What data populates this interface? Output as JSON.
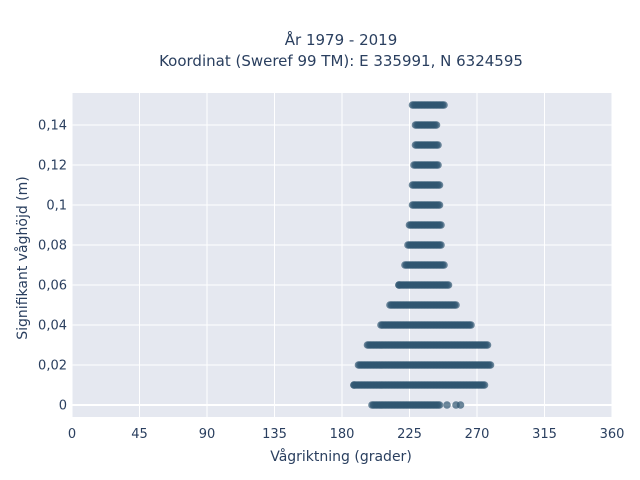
{
  "chart_data": {
    "type": "scatter",
    "title": "År 1979 - 2019",
    "subtitle": "Koordinat (Sweref 99 TM): E 335991, N 6324595",
    "xlabel": "Vågriktning (grader)",
    "ylabel": "Signifikant våghöjd (m)",
    "xlim": [
      0,
      360
    ],
    "ylim": [
      -0.006,
      0.156
    ],
    "x_ticks": [
      0,
      45,
      90,
      135,
      180,
      225,
      270,
      315,
      360
    ],
    "x_tick_labels": [
      "0",
      "45",
      "90",
      "135",
      "180",
      "225",
      "270",
      "315",
      "360"
    ],
    "y_ticks": [
      0,
      0.02,
      0.04,
      0.06,
      0.08,
      0.1,
      0.12,
      0.14
    ],
    "y_tick_labels": [
      "0",
      "0,02",
      "0,04",
      "0,06",
      "0,08",
      "0,1",
      "0,12",
      "0,14"
    ],
    "grid": true,
    "background_color": "#e5e8f0",
    "marker_color": "#2f5570",
    "bands": [
      {
        "y": 0.0,
        "x_min": 200,
        "x_max": 245
      },
      {
        "y": 0.01,
        "x_min": 188,
        "x_max": 275
      },
      {
        "y": 0.02,
        "x_min": 191,
        "x_max": 279
      },
      {
        "y": 0.03,
        "x_min": 197,
        "x_max": 277
      },
      {
        "y": 0.04,
        "x_min": 206,
        "x_max": 266
      },
      {
        "y": 0.05,
        "x_min": 213,
        "x_max": 256
      },
      {
        "y": 0.06,
        "x_min": 218,
        "x_max": 251
      },
      {
        "y": 0.07,
        "x_min": 222,
        "x_max": 248
      },
      {
        "y": 0.08,
        "x_min": 224,
        "x_max": 246
      },
      {
        "y": 0.09,
        "x_min": 225,
        "x_max": 246
      },
      {
        "y": 0.1,
        "x_min": 227,
        "x_max": 245
      },
      {
        "y": 0.11,
        "x_min": 227,
        "x_max": 245
      },
      {
        "y": 0.12,
        "x_min": 228,
        "x_max": 244
      },
      {
        "y": 0.13,
        "x_min": 229,
        "x_max": 244
      },
      {
        "y": 0.14,
        "x_min": 229,
        "x_max": 243
      },
      {
        "y": 0.15,
        "x_min": 227,
        "x_max": 248
      }
    ],
    "outliers": [
      {
        "x": 250,
        "y": 0.0
      },
      {
        "x": 256,
        "y": 0.0
      },
      {
        "x": 259,
        "y": 0.0
      },
      {
        "x": 218,
        "y": 0.06
      },
      {
        "x": 212,
        "y": 0.05
      },
      {
        "x": 188,
        "y": 0.01
      }
    ]
  }
}
